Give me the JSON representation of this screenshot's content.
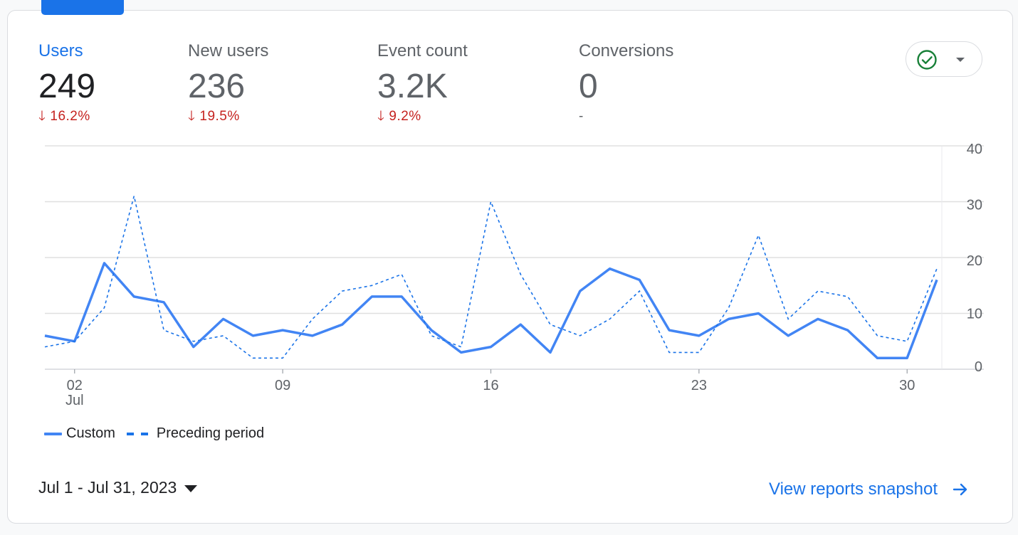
{
  "metrics": [
    {
      "label": "Users",
      "value": "249",
      "change": "16.2%",
      "direction": "down",
      "active": true
    },
    {
      "label": "New users",
      "value": "236",
      "change": "19.5%",
      "direction": "down",
      "active": false
    },
    {
      "label": "Event count",
      "value": "3.2K",
      "change": "9.2%",
      "direction": "down",
      "active": false
    },
    {
      "label": "Conversions",
      "value": "0",
      "change": "-",
      "direction": "none",
      "active": false
    }
  ],
  "compare_button": {
    "icon": "check-circle-icon",
    "dropdown_icon": "caret-down-icon"
  },
  "colors": {
    "accent": "#1a73e8",
    "series_custom": "#4285f4",
    "series_preceding": "#1a73e8",
    "negative": "#c5221f",
    "check": "#188038"
  },
  "chart_data": {
    "type": "line",
    "x": [
      "1",
      "2",
      "3",
      "4",
      "5",
      "6",
      "7",
      "8",
      "9",
      "10",
      "11",
      "12",
      "13",
      "14",
      "15",
      "16",
      "17",
      "18",
      "19",
      "20",
      "21",
      "22",
      "23",
      "24",
      "25",
      "26",
      "27",
      "28",
      "29",
      "30",
      "31"
    ],
    "x_ticks": [
      {
        "value": "02",
        "sub": "Jul",
        "index": 1
      },
      {
        "value": "09",
        "sub": "",
        "index": 8
      },
      {
        "value": "16",
        "sub": "",
        "index": 15
      },
      {
        "value": "23",
        "sub": "",
        "index": 22
      },
      {
        "value": "30",
        "sub": "",
        "index": 29
      }
    ],
    "y_ticks": [
      "0",
      "10",
      "20",
      "30",
      "40"
    ],
    "ylim": [
      0,
      40
    ],
    "series": [
      {
        "name": "Custom",
        "style": "solid",
        "values": [
          6,
          5,
          19,
          13,
          12,
          4,
          9,
          6,
          7,
          6,
          8,
          13,
          13,
          7,
          3,
          4,
          8,
          3,
          14,
          18,
          16,
          7,
          6,
          9,
          10,
          6,
          9,
          7,
          2,
          2,
          16
        ]
      },
      {
        "name": "Preceding period",
        "style": "dashed",
        "values": [
          4,
          5,
          11,
          31,
          7,
          5,
          6,
          2,
          2,
          9,
          14,
          15,
          17,
          6,
          4,
          30,
          17,
          8,
          6,
          9,
          14,
          3,
          3,
          11,
          24,
          9,
          14,
          13,
          6,
          5,
          18
        ]
      }
    ]
  },
  "legend": {
    "custom": "Custom",
    "preceding": "Preceding period"
  },
  "footer": {
    "date_range": "Jul 1 - Jul 31, 2023",
    "view_link": "View reports snapshot"
  }
}
